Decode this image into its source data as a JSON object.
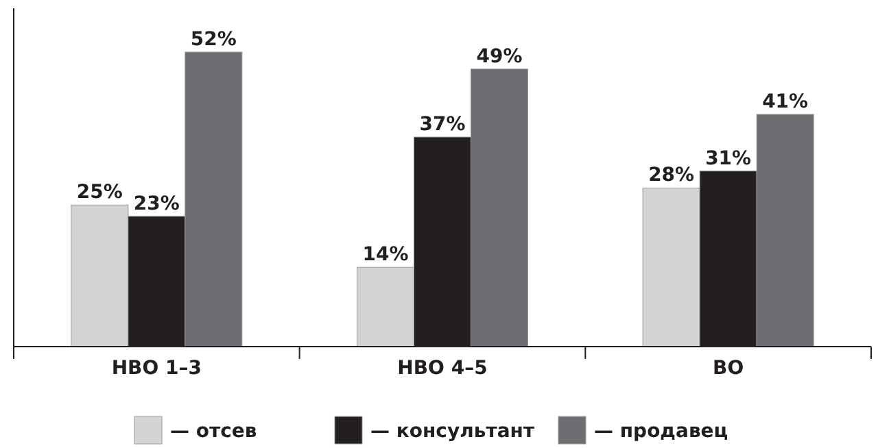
{
  "chart_data": {
    "type": "bar",
    "categories": [
      "НВО 1–3",
      "НВО 4–5",
      "ВО"
    ],
    "series": [
      {
        "name": "— отсев",
        "color": "#d4d4d4",
        "values": [
          25,
          14,
          28
        ],
        "value_labels": [
          "25%",
          "14%",
          "28%"
        ]
      },
      {
        "name": "— консультант",
        "color": "#231f20",
        "values": [
          23,
          37,
          31
        ],
        "value_labels": [
          "23%",
          "37%",
          "31%"
        ]
      },
      {
        "name": "— продавец",
        "color": "#6d6e71",
        "values": [
          52,
          49,
          41
        ],
        "value_labels": [
          "52%",
          "49%",
          "41%"
        ]
      }
    ],
    "legend": "bottom"
  }
}
